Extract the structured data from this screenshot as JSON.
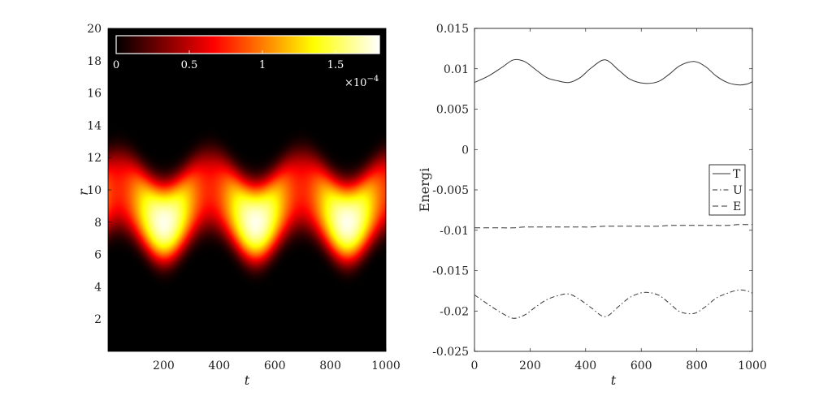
{
  "chart_data": [
    {
      "type": "heatmap",
      "xlabel": "t",
      "ylabel": "r",
      "xlim": [
        0,
        1000
      ],
      "ylim": [
        0,
        20
      ],
      "xticks": [
        200,
        400,
        600,
        800,
        1000
      ],
      "yticks": [
        2,
        4,
        6,
        8,
        10,
        12,
        14,
        16,
        18,
        20
      ],
      "colormap": "hot",
      "colorbar": {
        "location": "top-inside",
        "ticks": [
          "0",
          "0.5",
          "1",
          "1.5"
        ],
        "tick_values": [
          0,
          0.5,
          1,
          1.5
        ],
        "range": [
          0,
          1.8
        ],
        "multiplier_base": "×10",
        "multiplier_exp": "−4"
      },
      "band": {
        "center_r_mean": 9.0,
        "center_r_amplitude": 1.0,
        "period_t": 330,
        "peak_t": [
          200,
          530,
          860
        ],
        "width_r": 2.0,
        "peak_value": 1.8
      }
    },
    {
      "type": "line",
      "xlabel": "t",
      "ylabel": "Energi",
      "xlim": [
        0,
        1000
      ],
      "ylim": [
        -0.025,
        0.015
      ],
      "xticks": [
        0,
        200,
        400,
        600,
        800,
        1000
      ],
      "yticks": [
        "0.015",
        "0.01",
        "0.005",
        "0",
        "-0.005",
        "-0.01",
        "-0.015",
        "-0.02",
        "-0.025"
      ],
      "ytick_values": [
        0.015,
        0.01,
        0.005,
        0,
        -0.005,
        -0.01,
        -0.015,
        -0.02,
        -0.025
      ],
      "legend": "right",
      "x": [
        0,
        50,
        100,
        140,
        180,
        220,
        260,
        300,
        340,
        380,
        420,
        470,
        520,
        560,
        610,
        660,
        700,
        740,
        790,
        830,
        870,
        910,
        950,
        980,
        1000
      ],
      "series": [
        {
          "name": "T",
          "style": "solid",
          "values": [
            0.0083,
            0.0091,
            0.0102,
            0.0111,
            0.0109,
            0.0099,
            0.0089,
            0.0085,
            0.0083,
            0.0089,
            0.0101,
            0.0111,
            0.0098,
            0.0087,
            0.0082,
            0.0084,
            0.0093,
            0.0104,
            0.0109,
            0.0103,
            0.0091,
            0.0083,
            0.008,
            0.0081,
            0.0084
          ]
        },
        {
          "name": "U",
          "style": "dashdot",
          "values": [
            -0.018,
            -0.0192,
            -0.0203,
            -0.0209,
            -0.0205,
            -0.0195,
            -0.0186,
            -0.0181,
            -0.0179,
            -0.0186,
            -0.0196,
            -0.0207,
            -0.0194,
            -0.0183,
            -0.0177,
            -0.018,
            -0.019,
            -0.0201,
            -0.0203,
            -0.0195,
            -0.0184,
            -0.0178,
            -0.0174,
            -0.0175,
            -0.0178
          ]
        },
        {
          "name": "E",
          "style": "dashed",
          "values": [
            -0.0097,
            -0.0097,
            -0.0097,
            -0.0097,
            -0.0096,
            -0.0096,
            -0.0096,
            -0.0096,
            -0.0096,
            -0.0096,
            -0.0096,
            -0.0095,
            -0.0095,
            -0.0095,
            -0.0095,
            -0.0095,
            -0.0094,
            -0.0094,
            -0.0094,
            -0.0094,
            -0.0094,
            -0.0094,
            -0.0093,
            -0.0093,
            -0.0093
          ]
        }
      ]
    }
  ]
}
